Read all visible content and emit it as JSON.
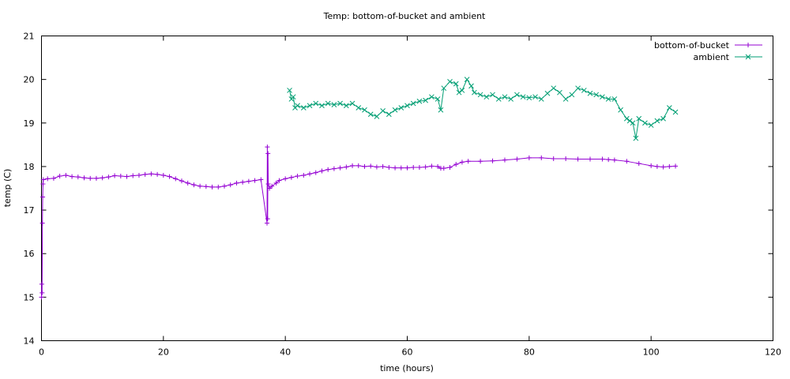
{
  "chart_data": {
    "type": "line",
    "title": "Temp: bottom-of-bucket and ambient",
    "xlabel": "time (hours)",
    "ylabel": "temp (C)",
    "xlim": [
      0,
      120
    ],
    "ylim": [
      14,
      21
    ],
    "x_ticks": [
      0,
      20,
      40,
      60,
      80,
      100,
      120
    ],
    "y_ticks": [
      14,
      15,
      16,
      17,
      18,
      19,
      20,
      21
    ],
    "x_tick_labels": [
      "0",
      "20",
      "40",
      "60",
      "80",
      "100",
      "120"
    ],
    "y_tick_labels": [
      "14",
      "15",
      "16",
      "17",
      "18",
      "19",
      "20",
      "21"
    ],
    "grid": false,
    "legend_position": "top-right",
    "series": [
      {
        "name": "bottom-of-bucket",
        "color": "#9400d3",
        "marker": "plus",
        "points": [
          [
            0.0,
            15.0
          ],
          [
            0.05,
            15.3
          ],
          [
            0.1,
            15.1
          ],
          [
            0.15,
            16.7
          ],
          [
            0.2,
            17.3
          ],
          [
            0.25,
            17.6
          ],
          [
            0.3,
            17.7
          ],
          [
            1,
            17.72
          ],
          [
            2,
            17.73
          ],
          [
            3,
            17.78
          ],
          [
            4,
            17.8
          ],
          [
            5,
            17.77
          ],
          [
            6,
            17.76
          ],
          [
            7,
            17.74
          ],
          [
            8,
            17.73
          ],
          [
            9,
            17.73
          ],
          [
            10,
            17.74
          ],
          [
            11,
            17.76
          ],
          [
            12,
            17.79
          ],
          [
            13,
            17.78
          ],
          [
            14,
            17.77
          ],
          [
            15,
            17.79
          ],
          [
            16,
            17.8
          ],
          [
            17,
            17.82
          ],
          [
            18,
            17.83
          ],
          [
            19,
            17.82
          ],
          [
            20,
            17.8
          ],
          [
            21,
            17.77
          ],
          [
            22,
            17.72
          ],
          [
            23,
            17.67
          ],
          [
            24,
            17.62
          ],
          [
            25,
            17.58
          ],
          [
            26,
            17.55
          ],
          [
            27,
            17.54
          ],
          [
            28,
            17.53
          ],
          [
            29,
            17.53
          ],
          [
            30,
            17.55
          ],
          [
            31,
            17.58
          ],
          [
            32,
            17.62
          ],
          [
            33,
            17.64
          ],
          [
            34,
            17.66
          ],
          [
            35,
            17.68
          ],
          [
            36,
            17.7
          ],
          [
            37,
            16.7
          ],
          [
            37.05,
            18.45
          ],
          [
            37.1,
            16.8
          ],
          [
            37.15,
            18.3
          ],
          [
            37.2,
            17.6
          ],
          [
            37.4,
            17.5
          ],
          [
            37.8,
            17.55
          ],
          [
            38.5,
            17.62
          ],
          [
            39,
            17.68
          ],
          [
            40,
            17.72
          ],
          [
            41,
            17.75
          ],
          [
            42,
            17.78
          ],
          [
            43,
            17.8
          ],
          [
            44,
            17.83
          ],
          [
            45,
            17.86
          ],
          [
            46,
            17.9
          ],
          [
            47,
            17.93
          ],
          [
            48,
            17.95
          ],
          [
            49,
            17.97
          ],
          [
            50,
            17.99
          ],
          [
            51,
            18.02
          ],
          [
            52,
            18.02
          ],
          [
            53,
            18.0
          ],
          [
            54,
            18.01
          ],
          [
            55,
            17.99
          ],
          [
            56,
            18.0
          ],
          [
            57,
            17.98
          ],
          [
            58,
            17.97
          ],
          [
            59,
            17.97
          ],
          [
            60,
            17.97
          ],
          [
            61,
            17.98
          ],
          [
            62,
            17.98
          ],
          [
            63,
            17.99
          ],
          [
            64,
            18.01
          ],
          [
            65,
            18.0
          ],
          [
            65.5,
            17.96
          ],
          [
            66,
            17.96
          ],
          [
            67,
            17.98
          ],
          [
            68,
            18.05
          ],
          [
            69,
            18.1
          ],
          [
            70,
            18.12
          ],
          [
            72,
            18.12
          ],
          [
            74,
            18.13
          ],
          [
            76,
            18.15
          ],
          [
            78,
            18.17
          ],
          [
            80,
            18.2
          ],
          [
            82,
            18.2
          ],
          [
            84,
            18.18
          ],
          [
            86,
            18.18
          ],
          [
            88,
            18.17
          ],
          [
            90,
            18.17
          ],
          [
            92,
            18.17
          ],
          [
            93,
            18.16
          ],
          [
            94,
            18.15
          ],
          [
            96,
            18.12
          ],
          [
            98,
            18.07
          ],
          [
            100,
            18.02
          ],
          [
            101,
            18.0
          ],
          [
            102,
            17.99
          ],
          [
            103,
            18.0
          ],
          [
            104,
            18.01
          ]
        ]
      },
      {
        "name": "ambient",
        "color": "#009e73",
        "marker": "cross",
        "points": [
          [
            40.7,
            19.75
          ],
          [
            41.0,
            19.55
          ],
          [
            41.3,
            19.6
          ],
          [
            41.6,
            19.35
          ],
          [
            42,
            19.4
          ],
          [
            43,
            19.35
          ],
          [
            44,
            19.4
          ],
          [
            45,
            19.45
          ],
          [
            46,
            19.4
          ],
          [
            47,
            19.45
          ],
          [
            48,
            19.42
          ],
          [
            49,
            19.45
          ],
          [
            50,
            19.4
          ],
          [
            51,
            19.45
          ],
          [
            52,
            19.35
          ],
          [
            53,
            19.3
          ],
          [
            54,
            19.2
          ],
          [
            55,
            19.15
          ],
          [
            56,
            19.28
          ],
          [
            57,
            19.2
          ],
          [
            58,
            19.3
          ],
          [
            59,
            19.35
          ],
          [
            60,
            19.4
          ],
          [
            61,
            19.45
          ],
          [
            62,
            19.5
          ],
          [
            63,
            19.52
          ],
          [
            64,
            19.6
          ],
          [
            65,
            19.55
          ],
          [
            65.5,
            19.3
          ],
          [
            66,
            19.8
          ],
          [
            67,
            19.95
          ],
          [
            68,
            19.9
          ],
          [
            68.5,
            19.7
          ],
          [
            69,
            19.75
          ],
          [
            69.8,
            20.0
          ],
          [
            70.5,
            19.85
          ],
          [
            71,
            19.7
          ],
          [
            72,
            19.65
          ],
          [
            73,
            19.6
          ],
          [
            74,
            19.65
          ],
          [
            75,
            19.55
          ],
          [
            76,
            19.6
          ],
          [
            77,
            19.55
          ],
          [
            78,
            19.65
          ],
          [
            79,
            19.6
          ],
          [
            80,
            19.58
          ],
          [
            81,
            19.6
          ],
          [
            82,
            19.55
          ],
          [
            83,
            19.68
          ],
          [
            84,
            19.8
          ],
          [
            85,
            19.7
          ],
          [
            86,
            19.55
          ],
          [
            87,
            19.65
          ],
          [
            88,
            19.8
          ],
          [
            89,
            19.75
          ],
          [
            90,
            19.68
          ],
          [
            91,
            19.65
          ],
          [
            92,
            19.6
          ],
          [
            93,
            19.55
          ],
          [
            94,
            19.55
          ],
          [
            95,
            19.3
          ],
          [
            96,
            19.1
          ],
          [
            96.5,
            19.05
          ],
          [
            97,
            19.0
          ],
          [
            97.5,
            18.65
          ],
          [
            98,
            19.1
          ],
          [
            99,
            19.0
          ],
          [
            100,
            18.95
          ],
          [
            101,
            19.05
          ],
          [
            102,
            19.1
          ],
          [
            103,
            19.35
          ],
          [
            104,
            19.25
          ]
        ]
      }
    ]
  }
}
